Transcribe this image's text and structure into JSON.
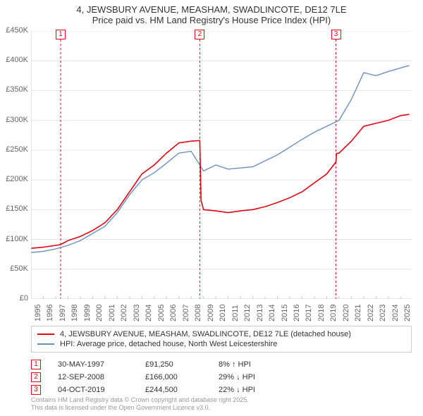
{
  "title": "4, JEWSBURY AVENUE, MEASHAM, SWADLINCOTE, DE12 7LE",
  "subtitle": "Price paid vs. HM Land Registry's House Price Index (HPI)",
  "chart": {
    "type": "line",
    "background_color": "#ffffff",
    "grid_color": "#e6e6e6",
    "axis_color": "#cccccc",
    "font_size_axis": 11,
    "x": {
      "min": 1995,
      "max": 2025.9,
      "ticks": [
        1995,
        1996,
        1997,
        1998,
        1999,
        2000,
        2001,
        2002,
        2003,
        2004,
        2005,
        2006,
        2007,
        2008,
        2009,
        2010,
        2011,
        2012,
        2013,
        2014,
        2015,
        2016,
        2017,
        2018,
        2019,
        2020,
        2021,
        2022,
        2023,
        2024,
        2025
      ],
      "tick_labels": [
        "1995",
        "1996",
        "1997",
        "1998",
        "1999",
        "2000",
        "2001",
        "2002",
        "2003",
        "2004",
        "2005",
        "2006",
        "2007",
        "2008",
        "2009",
        "2010",
        "2011",
        "2012",
        "2013",
        "2014",
        "2015",
        "2016",
        "2017",
        "2018",
        "2019",
        "2020",
        "2021",
        "2022",
        "2023",
        "2024",
        "2025"
      ]
    },
    "y": {
      "min": 0,
      "max": 450000,
      "step": 50000,
      "tick_labels": [
        "£0",
        "£50K",
        "£100K",
        "£150K",
        "£200K",
        "£250K",
        "£300K",
        "£350K",
        "£400K",
        "£450K"
      ],
      "ticks": [
        0,
        50000,
        100000,
        150000,
        200000,
        250000,
        300000,
        350000,
        400000,
        450000
      ]
    },
    "series": [
      {
        "id": "price_paid",
        "label": "4, JEWSBURY AVENUE, MEASHAM, SWADLINCOTE, DE12 7LE (detached house)",
        "color": "#e30613",
        "line_width": 1.6,
        "x": [
          1995,
          1996,
          1997,
          1997.4,
          1998,
          1999,
          2000,
          2001,
          2002,
          2003,
          2004,
          2005,
          2006,
          2007,
          2008,
          2008.7,
          2008.8,
          2009,
          2010,
          2011,
          2012,
          2013,
          2014,
          2015,
          2016,
          2017,
          2018,
          2019,
          2019.75,
          2019.8,
          2020,
          2021,
          2022,
          2023,
          2024,
          2025,
          2025.7
        ],
        "y": [
          85000,
          87000,
          90000,
          91250,
          98000,
          105000,
          115000,
          128000,
          150000,
          180000,
          210000,
          225000,
          245000,
          262000,
          265000,
          266000,
          166000,
          150000,
          148000,
          145000,
          148000,
          150000,
          155000,
          162000,
          170000,
          180000,
          195000,
          210000,
          230000,
          244500,
          245000,
          265000,
          290000,
          295000,
          300000,
          308000,
          310000
        ]
      },
      {
        "id": "hpi",
        "label": "HPI: Average price, detached house, North West Leicestershire",
        "color": "#6a8fc7",
        "line_width": 1.4,
        "x": [
          1995,
          1996,
          1997,
          1998,
          1999,
          2000,
          2001,
          2002,
          2003,
          2004,
          2005,
          2006,
          2007,
          2008,
          2009,
          2010,
          2011,
          2012,
          2013,
          2014,
          2015,
          2016,
          2017,
          2018,
          2019,
          2020,
          2021,
          2022,
          2023,
          2024,
          2025,
          2025.7
        ],
        "y": [
          78000,
          80000,
          84000,
          90000,
          98000,
          110000,
          122000,
          145000,
          175000,
          200000,
          212000,
          228000,
          245000,
          248000,
          215000,
          225000,
          218000,
          220000,
          222000,
          232000,
          242000,
          255000,
          268000,
          280000,
          290000,
          300000,
          335000,
          380000,
          375000,
          382000,
          388000,
          392000
        ]
      }
    ],
    "event_lines": {
      "color": "#e30613",
      "dash": "3,3",
      "width": 1,
      "positions_x": [
        1997.4,
        2008.7,
        2019.75
      ]
    },
    "event_markers": [
      {
        "n": "1",
        "x": 1997.4,
        "color": "#e30613"
      },
      {
        "n": "2",
        "x": 2008.7,
        "color": "#e30613"
      },
      {
        "n": "3",
        "x": 2019.75,
        "color": "#e30613"
      }
    ]
  },
  "legend": {
    "border_color": "#cccccc",
    "items": [
      {
        "color": "#e30613",
        "label": "4, JEWSBURY AVENUE, MEASHAM, SWADLINCOTE, DE12 7LE (detached house)"
      },
      {
        "color": "#6a8fc7",
        "label": "HPI: Average price, detached house, North West Leicestershire"
      }
    ]
  },
  "events": [
    {
      "n": "1",
      "color": "#e30613",
      "date": "30-MAY-1997",
      "price": "£91,250",
      "delta": "8% ↑ HPI"
    },
    {
      "n": "2",
      "color": "#e30613",
      "date": "12-SEP-2008",
      "price": "£166,000",
      "delta": "29% ↓ HPI"
    },
    {
      "n": "3",
      "color": "#e30613",
      "date": "04-OCT-2019",
      "price": "£244,500",
      "delta": "22% ↓ HPI"
    }
  ],
  "footer": {
    "line1": "Contains HM Land Registry data © Crown copyright and database right 2025.",
    "line2": "This data is licensed under the Open Government Licence v3.0."
  }
}
